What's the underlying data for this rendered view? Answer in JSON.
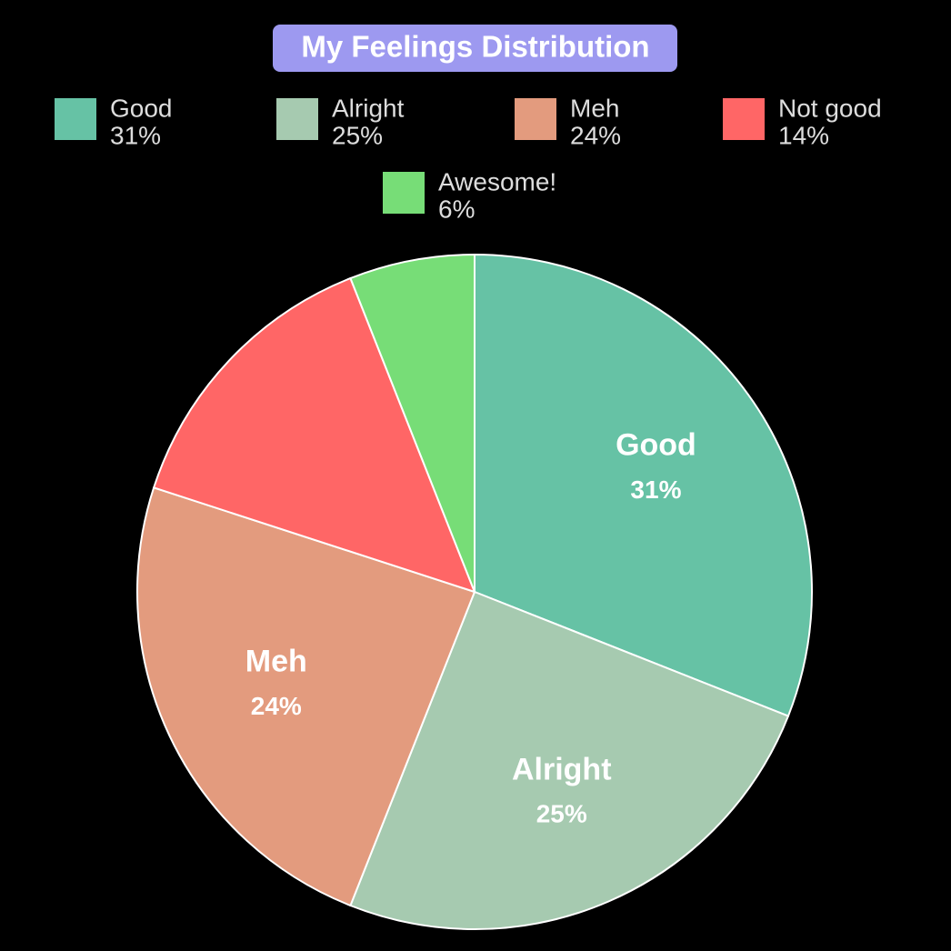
{
  "chart_data": {
    "type": "pie",
    "title": "My Feelings Distribution",
    "categories": [
      "Good",
      "Alright",
      "Meh",
      "Not good",
      "Awesome!"
    ],
    "values": [
      31,
      25,
      24,
      14,
      6
    ],
    "value_labels": [
      "31%",
      "25%",
      "24%",
      "14%",
      "6%"
    ],
    "colors": [
      "#66c2a5",
      "#a6cab0",
      "#e39b7e",
      "#ff6666",
      "#77dd77"
    ]
  }
}
